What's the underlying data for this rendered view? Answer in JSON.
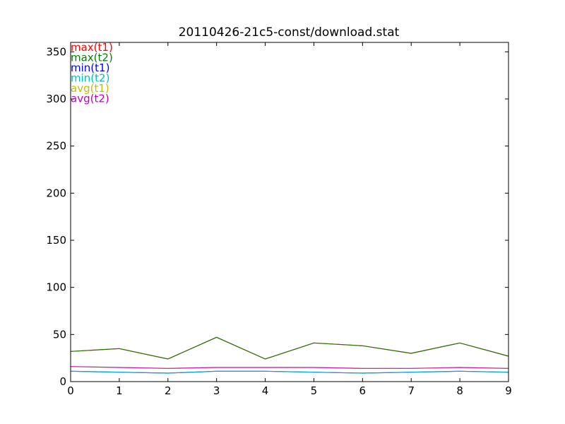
{
  "chart_data": {
    "type": "line",
    "title": "20110426-21c5-const/download.stat",
    "xlabel": "",
    "ylabel": "",
    "xlim": [
      0,
      9
    ],
    "ylim": [
      0,
      360
    ],
    "grid": false,
    "legend_position": "top-left",
    "x": [
      0,
      1,
      2,
      3,
      4,
      5,
      6,
      7,
      8,
      9
    ],
    "x_ticks": [
      "0",
      "1",
      "2",
      "3",
      "4",
      "5",
      "6",
      "7",
      "8",
      "9"
    ],
    "y_ticks": [
      "0",
      "50",
      "100",
      "150",
      "200",
      "250",
      "300",
      "350"
    ],
    "series": [
      {
        "name": "max(t1)",
        "color": "#ff0000",
        "values": [
          32,
          35,
          24,
          47,
          24,
          41,
          38,
          30,
          41,
          27
        ]
      },
      {
        "name": "max(t2)",
        "color": "#008000",
        "values": [
          32,
          35,
          24,
          47,
          24,
          41,
          38,
          30,
          41,
          27
        ]
      },
      {
        "name": "min(t1)",
        "color": "#0000ff",
        "values": [
          11,
          10,
          9,
          11,
          11,
          10,
          9,
          10,
          11,
          10
        ]
      },
      {
        "name": "min(t2)",
        "color": "#00bfbf",
        "values": [
          11,
          10,
          9,
          11,
          11,
          10,
          9,
          10,
          11,
          10
        ]
      },
      {
        "name": "avg(t1)",
        "color": "#bfbf00",
        "values": [
          16,
          15,
          14,
          15,
          15,
          15,
          14,
          14,
          15,
          14
        ]
      },
      {
        "name": "avg(t2)",
        "color": "#bf00bf",
        "values": [
          16,
          15,
          14,
          15,
          15,
          15,
          14,
          14,
          15,
          14
        ]
      }
    ]
  }
}
